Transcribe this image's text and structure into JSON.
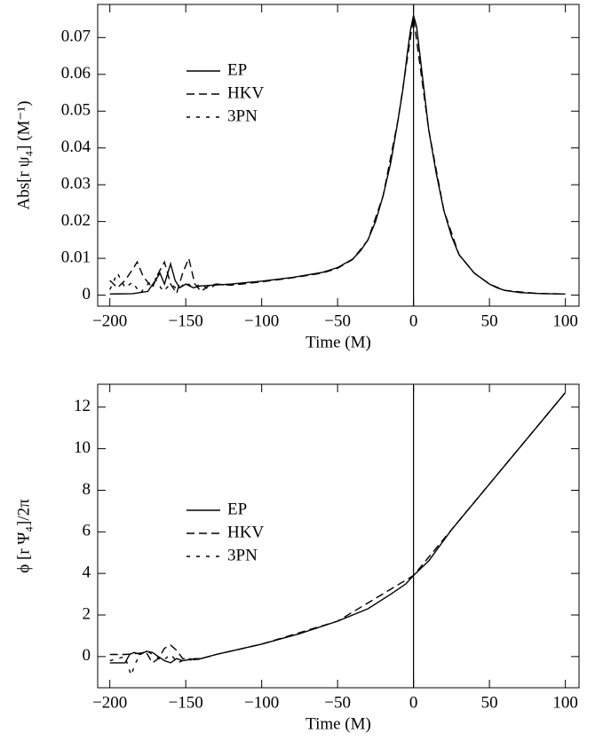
{
  "chart_data": [
    {
      "type": "line",
      "ylabel": "Abs[r ψ₄] (M⁻¹)",
      "xlabel": "Time (M)",
      "xlim": [
        -208,
        109
      ],
      "ylim": [
        -0.003,
        0.079
      ],
      "xticks": [
        {
          "value": -200,
          "label": "−200"
        },
        {
          "value": -150,
          "label": "−150"
        },
        {
          "value": -100,
          "label": "−100"
        },
        {
          "value": -50,
          "label": "−50"
        },
        0,
        50,
        100
      ],
      "yticks": [
        0,
        0.01,
        0.02,
        0.03,
        0.04,
        0.05,
        0.06,
        0.07
      ],
      "vline": 0,
      "legend": "upper left",
      "series": [
        {
          "name": "EP",
          "color": "#000000",
          "dash": "solid",
          "x": [
            -200,
            -185,
            -175,
            -170,
            -167,
            -164,
            -160,
            -157,
            -154,
            -150,
            -145,
            -140,
            -120,
            -100,
            -80,
            -60,
            -50,
            -40,
            -35,
            -30,
            -25,
            -20,
            -15,
            -10,
            -7,
            -4,
            -2,
            0,
            2,
            4,
            6,
            10,
            15,
            20,
            25,
            30,
            40,
            50,
            55,
            60,
            70,
            85,
            100
          ],
          "values": [
            0.0003,
            0.0004,
            0.001,
            0.004,
            0.006,
            0.003,
            0.0085,
            0.004,
            0.002,
            0.003,
            0.002,
            0.0025,
            0.003,
            0.0038,
            0.0048,
            0.0062,
            0.0075,
            0.0098,
            0.012,
            0.015,
            0.02,
            0.027,
            0.036,
            0.048,
            0.056,
            0.066,
            0.072,
            0.076,
            0.073,
            0.066,
            0.059,
            0.045,
            0.033,
            0.023,
            0.016,
            0.011,
            0.006,
            0.003,
            0.002,
            0.0013,
            0.0007,
            0.0004,
            0.0003
          ]
        },
        {
          "name": "HKV",
          "color": "#000000",
          "dash": "dashed",
          "x": [
            -200,
            -195,
            -190,
            -185,
            -182,
            -178,
            -172,
            -168,
            -164,
            -160,
            -156,
            -152,
            -148,
            -144,
            -140,
            -135,
            -130,
            -120,
            -100,
            -80,
            -60,
            -50,
            -40,
            -30,
            -20,
            -10,
            0,
            10,
            20,
            30,
            40,
            50,
            60,
            80,
            100
          ],
          "values": [
            0.004,
            0.002,
            0.004,
            0.007,
            0.009,
            0.005,
            0.002,
            0.006,
            0.009,
            0.003,
            0.0005,
            0.006,
            0.01,
            0.003,
            0.001,
            0.0025,
            0.003,
            0.0027,
            0.0036,
            0.0047,
            0.006,
            0.0073,
            0.0097,
            0.015,
            0.027,
            0.048,
            0.0755,
            0.045,
            0.023,
            0.011,
            0.006,
            0.003,
            0.0013,
            0.0005,
            0.0003
          ]
        },
        {
          "name": "3PN",
          "color": "#000000",
          "dash": "dotted",
          "x": [
            -200,
            -195,
            -190,
            -185,
            -180,
            -175,
            -170,
            -165,
            -160,
            -155,
            -150,
            -145,
            -140,
            -135,
            -130,
            -125
          ],
          "values": [
            0.0015,
            0.006,
            0.002,
            0.0035,
            0.0005,
            0.003,
            0.0045,
            0.001,
            0.003,
            0.0015,
            0.0035,
            0.002,
            0.003,
            0.0015,
            0.003,
            0.0028
          ]
        }
      ]
    },
    {
      "type": "line",
      "ylabel": "ϕ [r Ψ₄]/2π",
      "xlabel": "Time (M)",
      "xlim": [
        -208,
        109
      ],
      "ylim": [
        -1.5,
        13.1
      ],
      "xticks": [
        {
          "value": -200,
          "label": "−200"
        },
        {
          "value": -150,
          "label": "−150"
        },
        {
          "value": -100,
          "label": "−100"
        },
        {
          "value": -50,
          "label": "−50"
        },
        0,
        50,
        100
      ],
      "yticks": [
        0,
        2,
        4,
        6,
        8,
        10,
        12
      ],
      "vline": 0,
      "legend": "upper left",
      "series": [
        {
          "name": "EP",
          "color": "#000000",
          "dash": "solid",
          "x": [
            -200,
            -190,
            -187,
            -184,
            -180,
            -176,
            -172,
            -168,
            -164,
            -160,
            -156,
            -152,
            -148,
            -144,
            -140,
            -130,
            -115,
            -100,
            -75,
            -50,
            -30,
            -15,
            -5,
            0,
            10,
            25,
            50,
            75,
            100
          ],
          "values": [
            -0.3,
            -0.3,
            0.1,
            0.2,
            0.1,
            0.25,
            0.2,
            0.0,
            -0.2,
            -0.3,
            -0.1,
            -0.2,
            -0.15,
            -0.1,
            -0.1,
            0.1,
            0.35,
            0.6,
            1.1,
            1.7,
            2.3,
            3.0,
            3.5,
            3.9,
            4.6,
            6.1,
            8.3,
            10.5,
            12.7
          ]
        },
        {
          "name": "HKV",
          "color": "#000000",
          "dash": "dashed",
          "x": [
            -200,
            -190,
            -182,
            -176,
            -172,
            -168,
            -164,
            -160,
            -156,
            -152,
            -148,
            -144,
            -140,
            -130,
            -100,
            -50,
            0,
            50,
            100
          ],
          "values": [
            0.1,
            0.1,
            0.15,
            0.2,
            -0.3,
            -0.1,
            0.4,
            0.55,
            0.3,
            -0.1,
            -0.1,
            -0.15,
            -0.1,
            0.1,
            0.6,
            1.7,
            3.9,
            8.3,
            12.7
          ]
        },
        {
          "name": "3PN",
          "color": "#000000",
          "dash": "dotted",
          "x": [
            -200,
            -195,
            -190,
            -186,
            -183,
            -180,
            -176,
            -170,
            -165,
            -160,
            -155,
            -150,
            -145,
            -140,
            -135,
            -130
          ],
          "values": [
            -0.2,
            -0.1,
            0.0,
            -0.9,
            -0.3,
            0.1,
            0.3,
            0.0,
            -0.2,
            0.1,
            -0.3,
            -0.1,
            -0.2,
            -0.1,
            0.0,
            0.1
          ]
        }
      ]
    }
  ]
}
